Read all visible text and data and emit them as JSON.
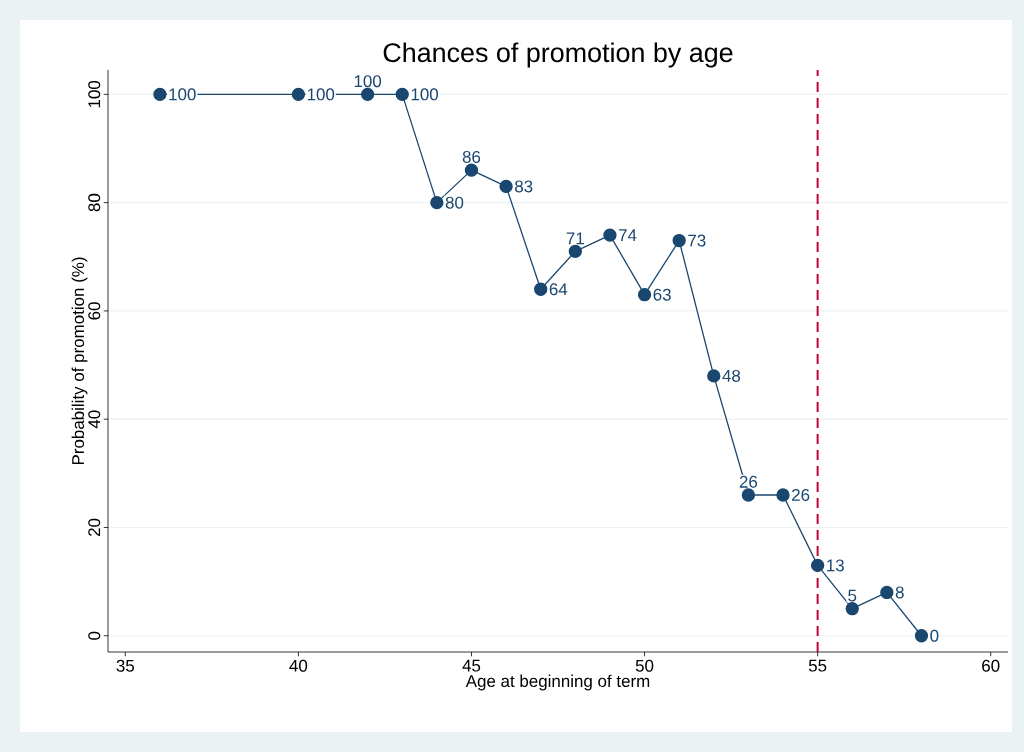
{
  "chart_data": {
    "type": "line",
    "title": "Chances of promotion by age",
    "xlabel": "Age at beginning of term",
    "ylabel": "Probability of promotion (%)",
    "x": [
      36,
      40,
      42,
      43,
      44,
      45,
      46,
      47,
      48,
      49,
      50,
      51,
      52,
      53,
      54,
      55,
      56,
      57,
      58
    ],
    "values": [
      100,
      100,
      100,
      100,
      80,
      86,
      83,
      64,
      71,
      74,
      63,
      73,
      48,
      26,
      26,
      13,
      5,
      8,
      0
    ],
    "color": "#1a476f",
    "marker": "circle",
    "data_labels": true,
    "grid": "y",
    "xlim": [
      34.5,
      60.5
    ],
    "xticks": [
      35,
      40,
      45,
      50,
      55,
      60
    ],
    "ylim": [
      -3,
      104.5
    ],
    "yticks": [
      0,
      20,
      40,
      60,
      80,
      100
    ],
    "ref_lines": [
      {
        "axis": "x",
        "value": 55,
        "color": "#c10534",
        "line_style": "dashed"
      }
    ]
  }
}
